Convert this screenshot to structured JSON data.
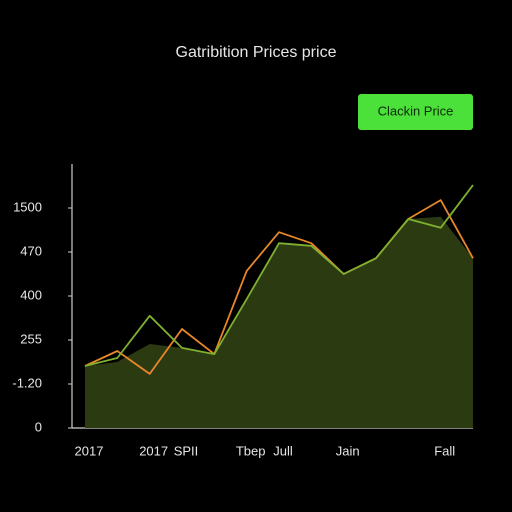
{
  "chart_data": {
    "type": "line",
    "title": "Gatribition Prices price",
    "button": "Clackin Price",
    "categories": [
      "2017",
      null,
      "2017",
      "SPII",
      null,
      "Tbep",
      "Jull",
      null,
      "Jain",
      null,
      null,
      "Fall",
      null
    ],
    "series": [
      {
        "type": "area",
        "color": "#2c3a12",
        "values": [
          1.41,
          1.5,
          1.91,
          1.82,
          1.68,
          2.93,
          4.2,
          4.14,
          3.5,
          3.86,
          4.75,
          4.8,
          3.86
        ]
      },
      {
        "color": "#e8872a",
        "values": [
          1.41,
          1.75,
          1.23,
          2.25,
          1.68,
          3.57,
          4.45,
          4.2,
          3.5,
          3.86,
          4.75,
          5.18,
          3.86
        ]
      },
      {
        "color": "#7fb030",
        "values": [
          1.41,
          1.59,
          2.55,
          1.82,
          1.68,
          2.93,
          4.2,
          4.14,
          3.5,
          3.86,
          4.75,
          4.55,
          5.52
        ]
      }
    ],
    "ylim": [
      0,
      6
    ],
    "yticks": [
      0,
      {
        "value": 1,
        "label": "-1.20"
      },
      {
        "value": 2,
        "label": "255"
      },
      {
        "value": 3,
        "label": "400"
      },
      {
        "value": 4,
        "label": "470"
      },
      {
        "value": 5,
        "label": "1500"
      }
    ]
  }
}
